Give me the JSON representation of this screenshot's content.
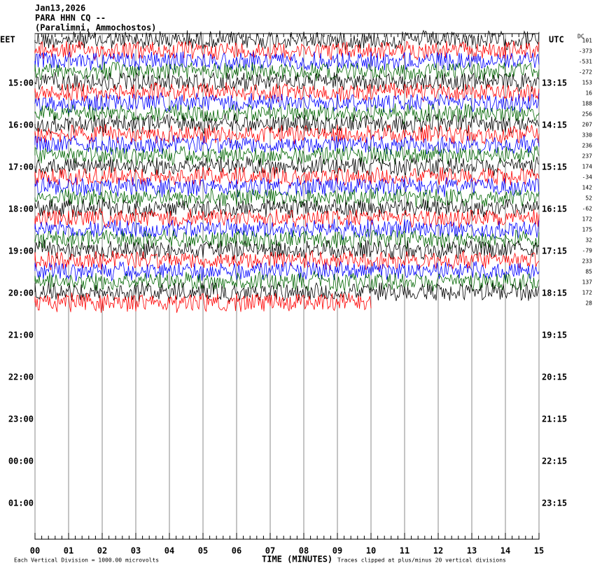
{
  "header": {
    "lines": [
      "Jan13,2026",
      "PARA HHN CQ --",
      "(Paralimni, Ammochostos)"
    ]
  },
  "left_axis": {
    "title": "EET",
    "labels": [
      "15:00",
      "16:00",
      "17:00",
      "18:00",
      "19:00",
      "20:00",
      "21:00",
      "22:00",
      "23:00",
      "00:00",
      "01:00"
    ]
  },
  "right_axis": {
    "title": "UTC",
    "labels": [
      "13:15",
      "14:15",
      "15:15",
      "16:15",
      "17:15",
      "18:15",
      "19:15",
      "20:15",
      "21:15",
      "22:15",
      "23:15"
    ]
  },
  "dc": {
    "title": "DC",
    "values": [
      "101",
      "-373",
      "-531",
      "-272",
      "153",
      "16",
      "188",
      "256",
      "207",
      "330",
      "236",
      "237",
      "174",
      "-34",
      "142",
      "52",
      "-62",
      "172",
      "175",
      "32",
      "-79",
      "233",
      "85",
      "137",
      "172",
      "28"
    ]
  },
  "x_axis": {
    "title": "TIME (MINUTES)",
    "labels": [
      "00",
      "01",
      "02",
      "03",
      "04",
      "05",
      "06",
      "07",
      "08",
      "09",
      "10",
      "11",
      "12",
      "13",
      "14",
      "15"
    ]
  },
  "footer": {
    "scale": "Each Vertical Division = 1000.00 microvolts",
    "clip": "Traces clipped at plus/minus 20 vertical divisions"
  }
}
